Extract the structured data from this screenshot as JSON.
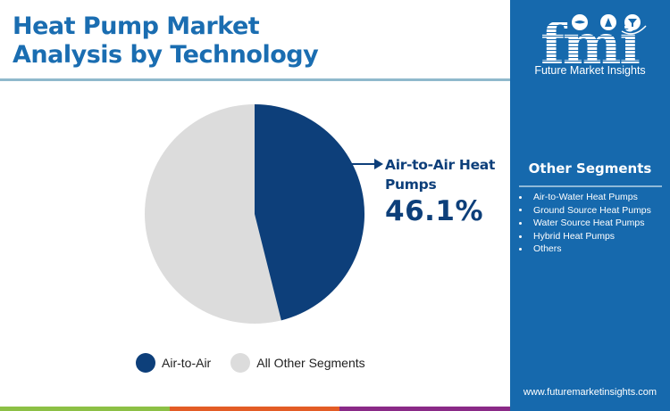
{
  "header": {
    "title_line1": "Heat Pump Market",
    "title_line2": "Analysis by Technology"
  },
  "brand": {
    "logo_letters": "fmi",
    "logo_name": "Future Market Insights",
    "url": "www.futuremarketinsights.com",
    "panel_color": "#1669ad"
  },
  "other_segments": {
    "title": "Other Segments",
    "items": [
      "Air-to-Water Heat Pumps",
      "Ground Source Heat Pumps",
      "Water Source Heat Pumps",
      "Hybrid Heat Pumps",
      "Others"
    ]
  },
  "callout": {
    "label": "Air-to-Air Heat Pumps",
    "value": "46.1%"
  },
  "legend": [
    {
      "label": "Air-to-Air",
      "color": "#0d3f7a"
    },
    {
      "label": "All Other Segments",
      "color": "#dcdcdc"
    }
  ],
  "bottom_band_colors": [
    "#8cc045",
    "#e35c26",
    "#8a2a87"
  ],
  "chart_data": {
    "type": "pie",
    "title": "Heat Pump Market Analysis by Technology",
    "categories": [
      "Air-to-Air",
      "All Other Segments"
    ],
    "values": [
      46.1,
      53.9
    ],
    "colors": [
      "#0d3f7a",
      "#dcdcdc"
    ],
    "start_angle": "12 o'clock, clockwise",
    "annotations": [
      {
        "target": "Air-to-Air",
        "text": "Air-to-Air Heat Pumps 46.1%"
      }
    ],
    "legend_position": "bottom"
  }
}
